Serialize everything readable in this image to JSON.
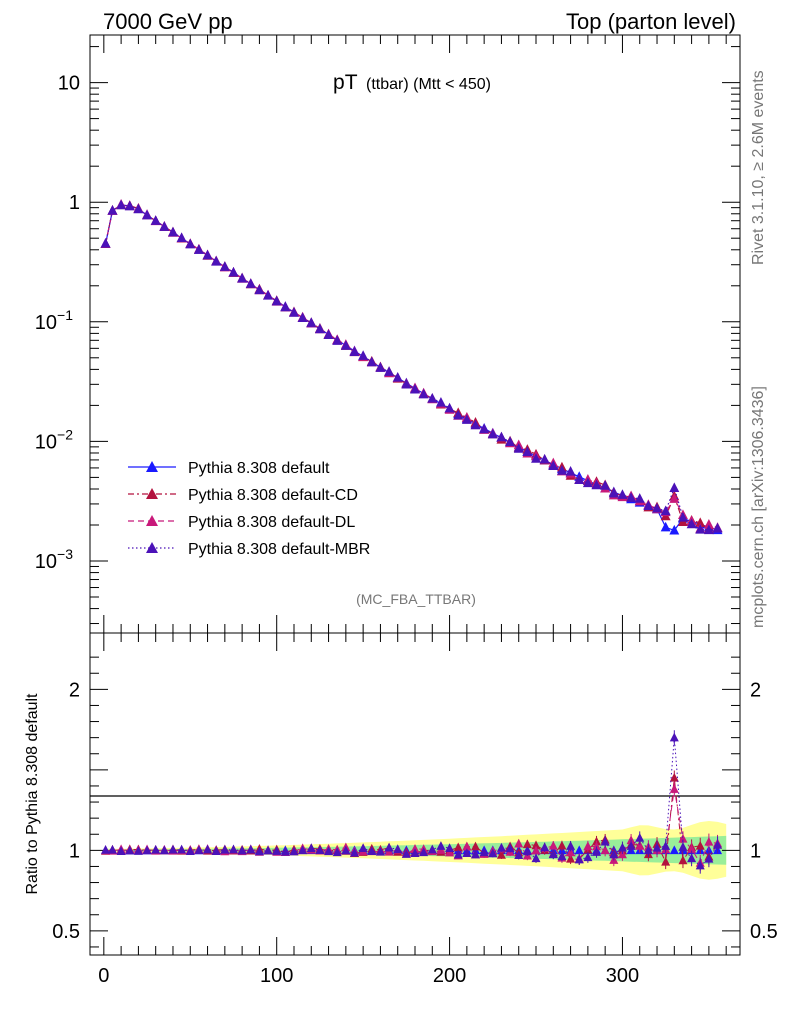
{
  "header": {
    "left": "7000 GeV pp",
    "right": "Top (parton level)"
  },
  "side_text": {
    "rivet": "Rivet 3.1.10, ≥ 2.6M events",
    "mcplots": "mcplots.cern.ch [arXiv:1306.3436]"
  },
  "chart_data": [
    {
      "type": "line",
      "title_main": "pT",
      "title_sub": "(ttbar) (Mtt < 450)",
      "watermark": "(MC_FBA_TTBAR)",
      "yscale": "log",
      "xlim": [
        -8,
        368
      ],
      "ylim": [
        0.00025,
        25
      ],
      "x_ticks": [
        0,
        100,
        200,
        300
      ],
      "y_ticks": [
        {
          "value": 10,
          "label": "10"
        },
        {
          "value": 1,
          "label": "1"
        },
        {
          "value": 0.1,
          "label": "10",
          "exp": "−1"
        },
        {
          "value": 0.01,
          "label": "10",
          "exp": "−2"
        },
        {
          "value": 0.001,
          "label": "10",
          "exp": "−3"
        }
      ],
      "legend_position": "bottom-left",
      "x_bin_centers": "0.5 .. 355 step 5 (~72 bins)",
      "curve_model": {
        "rise": [
          [
            1,
            0.45
          ],
          [
            5,
            0.85
          ],
          [
            10,
            0.95
          ],
          [
            15,
            0.93
          ],
          [
            20,
            0.88
          ]
        ],
        "falloff": "y = 0.88 * exp(-0.0202*(x-20)) + small tail; y(100)~0.116, y(200)~0.018, y(300)~0.0035, y(355)~0.0014"
      },
      "series": [
        {
          "name": "Pythia 8.308 default",
          "color": "#1a1aff",
          "marker": "triangle",
          "line": "solid"
        },
        {
          "name": "Pythia 8.308 default-CD",
          "color": "#b3123e",
          "marker": "triangle",
          "line": "dashdot"
        },
        {
          "name": "Pythia 8.308 default-DL",
          "color": "#c8197a",
          "marker": "triangle",
          "line": "dashed"
        },
        {
          "name": "Pythia 8.308 default-MBR",
          "color": "#4b12b8",
          "marker": "triangle",
          "line": "dotted"
        }
      ]
    },
    {
      "type": "line",
      "ylabel": "Ratio to Pythia 8.308 default",
      "xlim": [
        -8,
        368
      ],
      "ylim": [
        0.35,
        2.35
      ],
      "x_ticks": [
        0,
        100,
        200,
        300
      ],
      "y_ticks": [
        {
          "value": 2,
          "label": "2"
        },
        {
          "value": 1,
          "label": "1"
        },
        {
          "value": 0.5,
          "label": "0.5"
        }
      ],
      "reference": 1,
      "uncertainty_bands": {
        "yellow_halfwidth": "grows from ~0.01 at x=0 to ~0.17 at x=360",
        "green_halfwidth": "grows from ~0.005 at x=0 to ~0.09 at x=360"
      },
      "notable_points": [
        {
          "series": "Pythia 8.308 default-MBR",
          "x": 332,
          "y": 1.7
        },
        {
          "series": "Pythia 8.308 default-CD",
          "x": 332,
          "y": 1.45
        }
      ]
    }
  ]
}
